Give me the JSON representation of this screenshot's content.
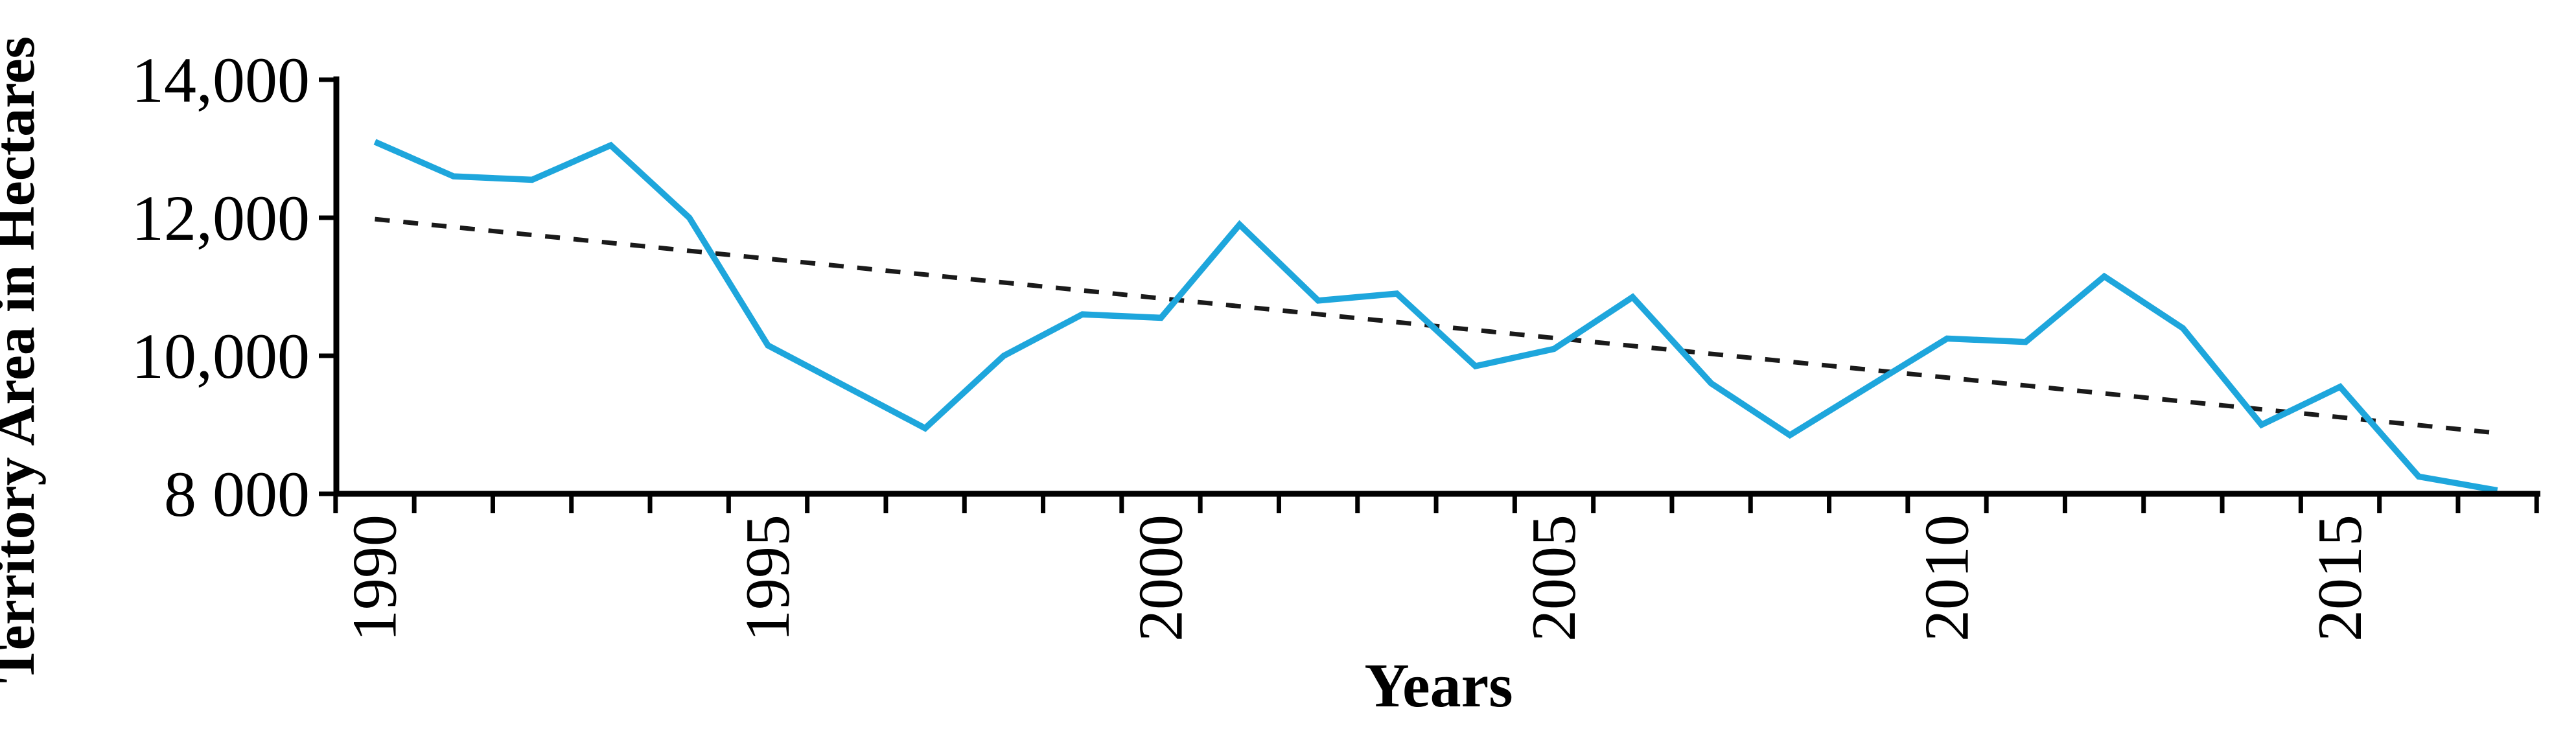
{
  "chart_data": {
    "type": "line",
    "title": "",
    "xlabel": "Years",
    "ylabel": "Territory Area in Hectares",
    "x": [
      1990,
      1991,
      1992,
      1993,
      1994,
      1995,
      1996,
      1997,
      1998,
      1999,
      2000,
      2001,
      2002,
      2003,
      2004,
      2005,
      2006,
      2007,
      2008,
      2009,
      2010,
      2011,
      2012,
      2013,
      2014,
      2015,
      2016,
      2017
    ],
    "series": [
      {
        "name": "territory-area",
        "type": "solid-line",
        "color": "#1EA6DC",
        "values": [
          13100,
          12600,
          12550,
          13050,
          12000,
          10150,
          9550,
          8950,
          10000,
          10600,
          10550,
          11900,
          10800,
          10900,
          9850,
          10100,
          10850,
          9600,
          8850,
          9550,
          10250,
          10200,
          11150,
          10400,
          9000,
          9550,
          8250,
          8050
        ]
      },
      {
        "name": "trend",
        "type": "dotted-line",
        "color": "#1a1a1a",
        "points": [
          {
            "year": 1990,
            "value": 11980
          },
          {
            "year": 2017,
            "value": 8880
          }
        ]
      }
    ],
    "ylim": [
      8000,
      14000
    ],
    "xlim": [
      1989.5,
      2017.5
    ],
    "yticks": {
      "values": [
        14000,
        12000,
        10000,
        8000
      ],
      "labels": [
        "14,000",
        "12,000",
        "10,000",
        "8 000"
      ]
    },
    "xticks": {
      "minor_step_years": 1,
      "labeled_years": [
        1990,
        1995,
        2000,
        2005,
        2010,
        2015
      ],
      "labels": [
        "1990",
        "1995",
        "2000",
        "2005",
        "2010",
        "2015"
      ]
    },
    "grid": false,
    "legend": null,
    "axis_color": "#000000"
  }
}
